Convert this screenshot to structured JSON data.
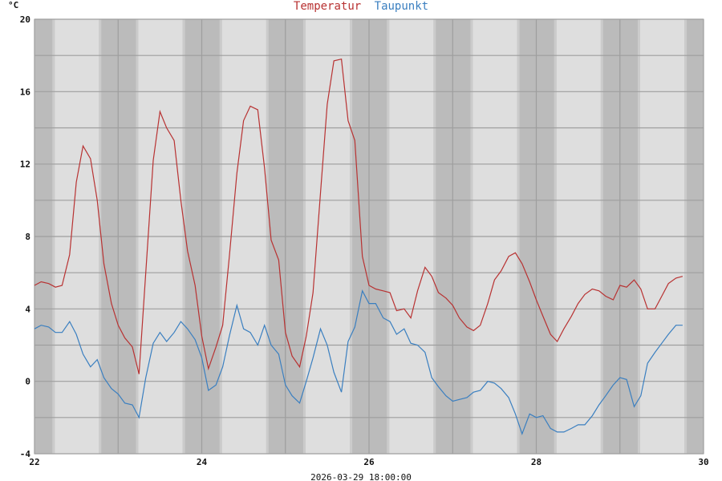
{
  "chart_data": {
    "type": "line",
    "title_parts": [
      {
        "text": "Temperatur",
        "color": "#b83232"
      },
      {
        "text": "Taupunkt",
        "color": "#3a7fc0"
      }
    ],
    "ylabel": "°C",
    "xlabel": "2026-03-29 18:00:00",
    "xlim": [
      22,
      30
    ],
    "ylim": [
      -4,
      20
    ],
    "x_ticks": [
      "22",
      "24",
      "26",
      "28",
      "30"
    ],
    "y_ticks": [
      "-4",
      "0",
      "4",
      "8",
      "12",
      "16",
      "20"
    ],
    "grid": true,
    "night_shading": {
      "sunset_hour": 18.5,
      "sunrise_hour": 5.8,
      "night_color": "#bbbbbb",
      "day_color": "#dedede"
    },
    "x": [
      22.0,
      22.08,
      22.17,
      22.25,
      22.33,
      22.42,
      22.5,
      22.58,
      22.67,
      22.75,
      22.83,
      22.92,
      23.0,
      23.08,
      23.17,
      23.25,
      23.33,
      23.42,
      23.5,
      23.58,
      23.67,
      23.75,
      23.83,
      23.92,
      24.0,
      24.08,
      24.17,
      24.25,
      24.33,
      24.42,
      24.5,
      24.58,
      24.67,
      24.75,
      24.83,
      24.92,
      25.0,
      25.08,
      25.17,
      25.25,
      25.33,
      25.42,
      25.5,
      25.58,
      25.67,
      25.75,
      25.83,
      25.92,
      26.0,
      26.08,
      26.17,
      26.25,
      26.33,
      26.42,
      26.5,
      26.58,
      26.67,
      26.75,
      26.83,
      26.92,
      27.0,
      27.08,
      27.17,
      27.25,
      27.33,
      27.42,
      27.5,
      27.58,
      27.67,
      27.75,
      27.83,
      27.92,
      28.0,
      28.08,
      28.17,
      28.25,
      28.33,
      28.42,
      28.5,
      28.58,
      28.67,
      28.75,
      28.83,
      28.92,
      29.0,
      29.08,
      29.17,
      29.25,
      29.33,
      29.42,
      29.5,
      29.58,
      29.67,
      29.75
    ],
    "series": [
      {
        "name": "Temperatur",
        "color": "#b83232",
        "values": [
          5.3,
          5.5,
          5.4,
          5.2,
          5.3,
          7.0,
          11.0,
          13.0,
          12.3,
          10.0,
          6.5,
          4.3,
          3.1,
          2.4,
          1.9,
          0.4,
          6.0,
          12.2,
          14.9,
          14.0,
          13.3,
          10.0,
          7.2,
          5.3,
          2.5,
          0.7,
          1.9,
          3.1,
          6.9,
          11.5,
          14.4,
          15.2,
          15.0,
          11.8,
          7.8,
          6.7,
          2.7,
          1.4,
          0.8,
          2.5,
          4.9,
          10.4,
          15.3,
          17.7,
          17.8,
          14.4,
          13.3,
          6.9,
          5.3,
          5.1,
          5.0,
          4.9,
          3.9,
          4.0,
          3.5,
          5.0,
          6.3,
          5.8,
          4.9,
          4.6,
          4.2,
          3.5,
          3.0,
          2.8,
          3.1,
          4.3,
          5.6,
          6.1,
          6.9,
          7.1,
          6.5,
          5.5,
          4.5,
          3.6,
          2.6,
          2.2,
          2.9,
          3.6,
          4.3,
          4.8,
          5.1,
          5.0,
          4.7,
          4.5,
          5.3,
          5.2,
          5.6,
          5.1,
          4.0,
          4.0,
          4.7,
          5.4,
          5.7,
          5.8
        ]
      },
      {
        "name": "Taupunkt",
        "color": "#3a7fc0",
        "values": [
          2.9,
          3.1,
          3.0,
          2.7,
          2.7,
          3.3,
          2.6,
          1.5,
          0.8,
          1.2,
          0.2,
          -0.4,
          -0.7,
          -1.2,
          -1.3,
          -2.0,
          0.2,
          2.1,
          2.7,
          2.2,
          2.7,
          3.3,
          2.9,
          2.3,
          1.3,
          -0.5,
          -0.2,
          0.8,
          2.5,
          4.2,
          2.9,
          2.7,
          2.0,
          3.1,
          2.0,
          1.5,
          -0.2,
          -0.8,
          -1.2,
          0.0,
          1.3,
          2.9,
          2.0,
          0.5,
          -0.6,
          2.2,
          3.0,
          5.0,
          4.3,
          4.3,
          3.5,
          3.3,
          2.6,
          2.9,
          2.1,
          2.0,
          1.6,
          0.2,
          -0.3,
          -0.8,
          -1.1,
          -1.0,
          -0.9,
          -0.6,
          -0.5,
          0.0,
          -0.1,
          -0.4,
          -0.9,
          -1.8,
          -2.9,
          -1.8,
          -2.0,
          -1.9,
          -2.6,
          -2.8,
          -2.8,
          -2.6,
          -2.4,
          -2.4,
          -1.9,
          -1.3,
          -0.8,
          -0.2,
          0.2,
          0.1,
          -1.4,
          -0.8,
          1.0,
          1.6,
          2.1,
          2.6,
          3.1,
          3.1
        ]
      }
    ]
  }
}
